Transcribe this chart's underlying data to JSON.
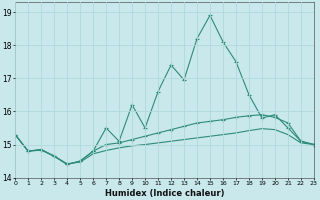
{
  "xlabel": "Humidex (Indice chaleur)",
  "x": [
    0,
    1,
    2,
    3,
    4,
    5,
    6,
    7,
    8,
    9,
    10,
    11,
    12,
    13,
    14,
    15,
    16,
    17,
    18,
    19,
    20,
    21,
    22,
    23
  ],
  "line1": [
    15.3,
    14.8,
    14.85,
    14.65,
    14.4,
    14.5,
    14.8,
    15.5,
    15.1,
    16.2,
    15.5,
    16.6,
    17.4,
    16.95,
    18.2,
    18.9,
    18.1,
    17.5,
    16.5,
    15.8,
    15.9,
    15.5,
    15.1,
    15.0
  ],
  "line2": [
    15.3,
    14.8,
    14.85,
    14.65,
    14.4,
    14.5,
    14.8,
    15.0,
    15.05,
    15.15,
    15.25,
    15.35,
    15.45,
    15.55,
    15.65,
    15.7,
    15.75,
    15.82,
    15.87,
    15.9,
    15.82,
    15.65,
    15.1,
    15.0
  ],
  "line3": [
    15.3,
    14.8,
    14.83,
    14.65,
    14.42,
    14.47,
    14.72,
    14.82,
    14.9,
    14.96,
    15.0,
    15.05,
    15.1,
    15.15,
    15.2,
    15.25,
    15.3,
    15.35,
    15.42,
    15.48,
    15.45,
    15.3,
    15.05,
    15.0
  ],
  "line_color": "#2E8B7A",
  "bg_color": "#C8E8EB",
  "grid_color": "#b0d8dc",
  "ylim": [
    14.0,
    19.3
  ],
  "yticks": [
    14,
    15,
    16,
    17,
    18,
    19
  ],
  "xlim": [
    0,
    23
  ]
}
